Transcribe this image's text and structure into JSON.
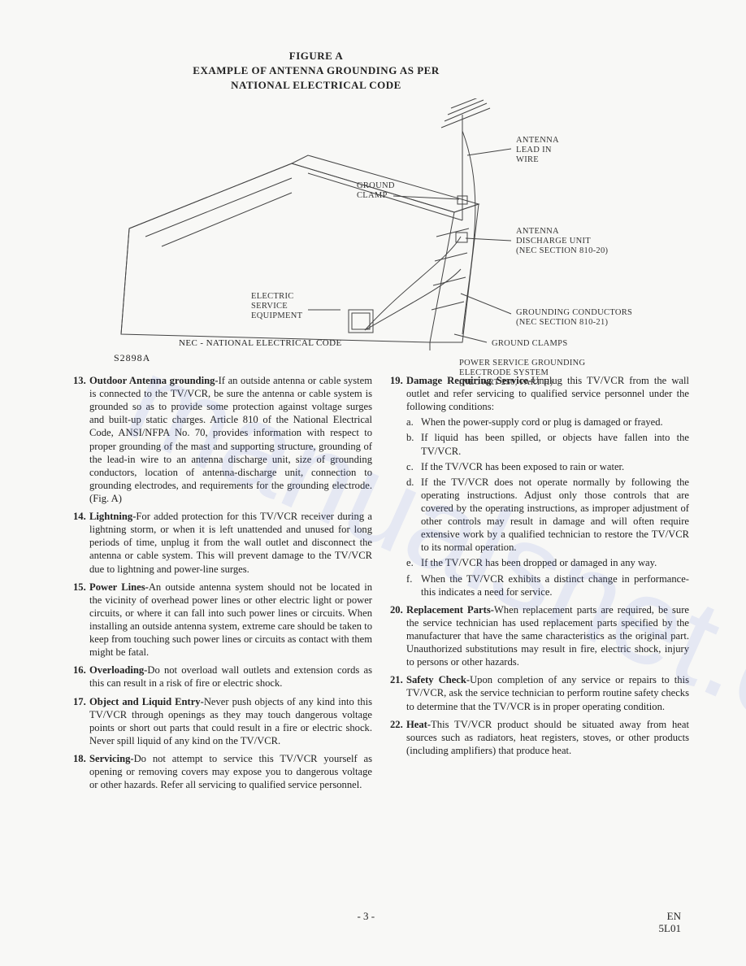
{
  "figure": {
    "title_line1": "FIGURE A",
    "title_line2": "EXAMPLE OF ANTENNA GROUNDING AS PER",
    "title_line3": "NATIONAL ELECTRICAL CODE",
    "footer_code_label": "NEC - NATIONAL ELECTRICAL CODE",
    "footer_model": "S2898A",
    "labels": {
      "antenna_lead": "ANTENNA\nLEAD IN\nWIRE",
      "ground_clamp": "GROUND\nCLAMP",
      "discharge_unit": "ANTENNA\nDISCHARGE UNIT\n(NEC SECTION 810-20)",
      "electric_service": "ELECTRIC\nSERVICE\nEQUIPMENT",
      "grounding_conductors": "GROUNDING CONDUCTORS\n(NEC SECTION 810-21)",
      "ground_clamps": "GROUND CLAMPS",
      "power_service": "POWER SERVICE GROUNDING\nELECTRODE SYSTEM\n(NEC ART 250, PART H)"
    },
    "svg": {
      "stroke": "#444444",
      "stroke_width": 1,
      "antenna_stroke": "#333333"
    }
  },
  "watermark": "manualsnet.com",
  "left_column": [
    {
      "num": "13.",
      "lead": "Outdoor Antenna grounding-",
      "body": "If an outside antenna or cable system is connected to the TV/VCR, be sure the antenna or cable system is grounded so as to provide some protection against voltage surges and built-up static charges. Article 810 of the National Electrical Code, ANSI/NFPA No. 70, provides information with respect to proper grounding of the mast and supporting structure, grounding of the lead-in wire to an antenna discharge unit, size of grounding conductors, location of antenna-discharge unit, connection to grounding electrodes, and requirements for the grounding electrode. (Fig. A)"
    },
    {
      "num": "14.",
      "lead": "Lightning-",
      "body": "For added protection for this TV/VCR receiver during a lightning storm, or when it is left unattended and unused for long periods of time, unplug it from the wall outlet and disconnect the antenna or cable system. This will prevent damage to the TV/VCR due to lightning and power-line surges."
    },
    {
      "num": "15.",
      "lead": "Power Lines-",
      "body": "An outside antenna system should not be located in the vicinity of overhead power lines or other electric light or power circuits, or where it can fall into such power lines or circuits. When installing an outside antenna system, extreme care should be taken to keep from touching such power lines or circuits as contact with them might be fatal."
    },
    {
      "num": "16.",
      "lead": "Overloading-",
      "body": "Do not overload wall outlets and extension cords as this can result in a risk of fire or electric shock."
    },
    {
      "num": "17.",
      "lead": "Object and Liquid Entry-",
      "body": "Never push objects of any kind into this TV/VCR through openings as they may touch dangerous voltage points or short out parts that could result in a fire or electric shock. Never spill liquid of any kind on the TV/VCR."
    },
    {
      "num": "18.",
      "lead": "Servicing-",
      "body": "Do not attempt to service this TV/VCR yourself as opening or removing covers may expose you to dangerous voltage or other hazards. Refer all servicing to qualified service personnel."
    }
  ],
  "right_column": [
    {
      "num": "19.",
      "lead": "Damage Requiring Service-",
      "body": "Unplug this TV/VCR from the wall outlet and refer servicing to qualified service personnel under the following conditions:",
      "subs": [
        {
          "let": "a.",
          "text": "When the power-supply cord or plug is damaged or frayed."
        },
        {
          "let": "b.",
          "text": "If liquid has been spilled, or objects have fallen into the TV/VCR."
        },
        {
          "let": "c.",
          "text": "If the TV/VCR has been exposed to rain or water."
        },
        {
          "let": "d.",
          "text": "If the TV/VCR does not operate normally by following the operating instructions. Adjust only those controls that are covered by the operating instructions, as improper adjustment of other controls may result in damage and will often require extensive work by a qualified technician to restore the TV/VCR to its normal operation."
        },
        {
          "let": "e.",
          "text": "If the TV/VCR has been dropped or damaged in any way."
        },
        {
          "let": "f.",
          "text": "When the TV/VCR exhibits a distinct change in performance-this indicates a need for service."
        }
      ]
    },
    {
      "num": "20.",
      "lead": "Replacement Parts-",
      "body": "When replacement parts are required, be sure the service technician has used replacement parts specified by the manufacturer that have the same characteristics as the original part. Unauthorized substitutions may result in fire, electric shock, injury to persons or other hazards."
    },
    {
      "num": "21.",
      "lead": "Safety Check-",
      "body": "Upon completion of any service or repairs to this TV/VCR, ask the service technician to perform routine safety checks to determine that the TV/VCR is in proper operating condition."
    },
    {
      "num": "22.",
      "lead": "Heat-",
      "body": "This TV/VCR product should be situated away from heat sources such as radiators, heat registers, stoves, or other products (including amplifiers) that produce heat."
    }
  ],
  "footer": {
    "page_num": "- 3 -",
    "lang": "EN",
    "code": "5L01"
  }
}
